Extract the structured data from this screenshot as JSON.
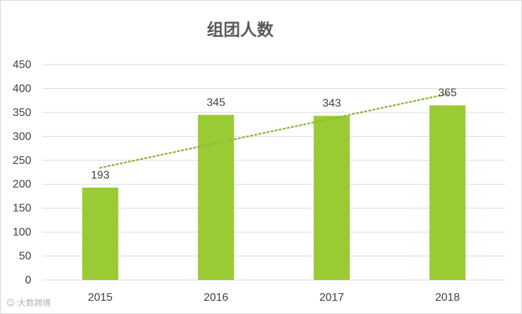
{
  "chart_data": {
    "type": "bar",
    "title": "组团人数",
    "categories": [
      "2015",
      "2016",
      "2017",
      "2018"
    ],
    "values": [
      193,
      345,
      343,
      365
    ],
    "data_labels": [
      "193",
      "345",
      "343",
      "365"
    ],
    "ylim": [
      0,
      450
    ],
    "yticks": [
      0,
      50,
      100,
      150,
      200,
      250,
      300,
      350,
      400,
      450
    ],
    "xlabel": "",
    "ylabel": "",
    "grid": true,
    "legend": "none",
    "trendline": {
      "type": "linear",
      "style": "dotted"
    },
    "bar_color": "#9ACB34",
    "trend_color": "#8DB83A",
    "grid_color": "#d9d9d9"
  },
  "watermark": "大数跨境"
}
